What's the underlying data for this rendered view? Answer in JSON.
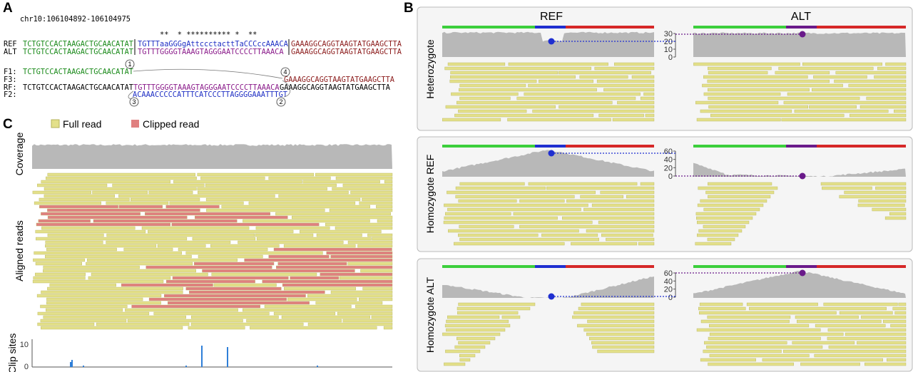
{
  "panel_a": {
    "label": "A",
    "region": "chr10:106104892-106104975",
    "asterisks": "**  * ********** *  **",
    "ref": {
      "label": "REF",
      "left": "TCTGTCCACTAAGACTGCAACATAT",
      "mid": "TGTTTaaGGGgAttccctacttTaCCCccAAACA",
      "right": "GAAAGGCAGGTAAGTATGAAGCTTA"
    },
    "alt": {
      "label": "ALT",
      "left": "TCTGTCCACTAAGACTGCAACATAT",
      "mid": "TGTTTGGGGTAAAGTAGGGAATCCCCTTAAACA",
      "right": "GAAAGGCAGGTAAGTATGAAGCTTA"
    },
    "f1": {
      "label": "F1:",
      "seq": "TCTGTCCACTAAGACTGCAACATAT"
    },
    "f3": {
      "label": "F3:",
      "seq": "GAAAGGCAGGTAAGTATGAAGCTTA"
    },
    "rf": {
      "label": "RF:",
      "left": "TCTGTCCACTAAGACTGCAACATAT",
      "mid": "TGTTTGGGGTAAAGTAGGGAATCCCCTTAAACA",
      "right": "GAAAGGCAGGTAAGTATGAAGCTTA"
    },
    "f2": {
      "label": "F2:",
      "seq": "ACAAACCCCCATTTCATCCCTTAGGGGAAATTTGT"
    },
    "markers": [
      "1",
      "2",
      "3",
      "4"
    ]
  },
  "panel_b": {
    "label": "B",
    "columns": [
      "REF",
      "ALT"
    ],
    "rows": [
      {
        "label": "Heterozygote",
        "ticks": [
          30,
          20,
          10,
          0
        ]
      },
      {
        "label": "Homozygote REF",
        "ticks": [
          60,
          40,
          20,
          0
        ]
      },
      {
        "label": "Homozygote ALT",
        "ticks": [
          60,
          40,
          20,
          0
        ]
      }
    ]
  },
  "panel_c": {
    "label": "C",
    "legend": [
      "Full read",
      "Clipped read"
    ],
    "coverage_label": "Coverage",
    "reads_label": "Aligned reads",
    "clip_label": "Clip sites",
    "clip_ticks": [
      10,
      0
    ]
  }
}
